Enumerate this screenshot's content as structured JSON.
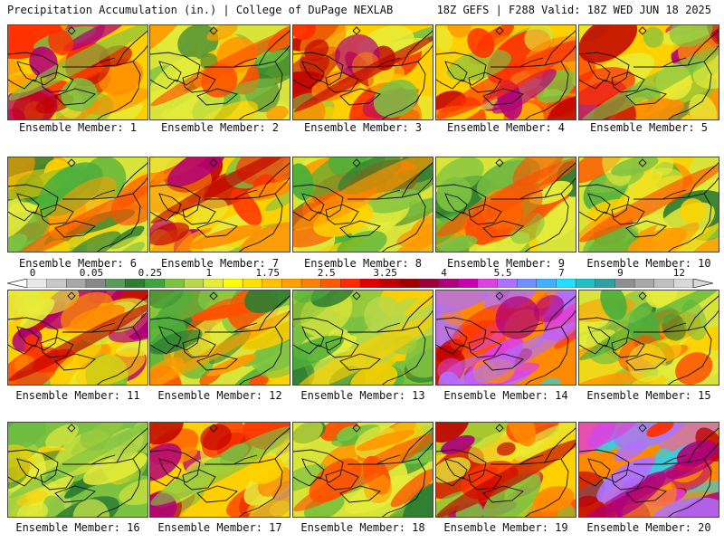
{
  "header": {
    "left": "Precipitation Accumulation (in.) | College of DuPage NEXLAB",
    "right": "18Z GEFS | F288 Valid: 18Z WED JUN 18 2025"
  },
  "members": [
    {
      "label": "Ensemble Member: 1",
      "tone": "wet"
    },
    {
      "label": "Ensemble Member: 2",
      "tone": "moderate"
    },
    {
      "label": "Ensemble Member: 3",
      "tone": "wet"
    },
    {
      "label": "Ensemble Member: 4",
      "tone": "wet"
    },
    {
      "label": "Ensemble Member: 5",
      "tone": "wet"
    },
    {
      "label": "Ensemble Member: 6",
      "tone": "moderate"
    },
    {
      "label": "Ensemble Member: 7",
      "tone": "wet"
    },
    {
      "label": "Ensemble Member: 8",
      "tone": "moderate"
    },
    {
      "label": "Ensemble Member: 9",
      "tone": "moderate"
    },
    {
      "label": "Ensemble Member: 10",
      "tone": "moderate"
    },
    {
      "label": "Ensemble Member: 11",
      "tone": "wet"
    },
    {
      "label": "Ensemble Member: 12",
      "tone": "moderate"
    },
    {
      "label": "Ensemble Member: 13",
      "tone": "dry"
    },
    {
      "label": "Ensemble Member: 14",
      "tone": "extreme"
    },
    {
      "label": "Ensemble Member: 15",
      "tone": "moderate"
    },
    {
      "label": "Ensemble Member: 16",
      "tone": "dry"
    },
    {
      "label": "Ensemble Member: 17",
      "tone": "wet"
    },
    {
      "label": "Ensemble Member: 18",
      "tone": "moderate"
    },
    {
      "label": "Ensemble Member: 19",
      "tone": "wet"
    },
    {
      "label": "Ensemble Member: 20",
      "tone": "extreme"
    }
  ],
  "legend": {
    "ticks": [
      {
        "label": "0",
        "index": 0
      },
      {
        "label": "0.05",
        "index": 3
      },
      {
        "label": "0.25",
        "index": 6
      },
      {
        "label": "1",
        "index": 9
      },
      {
        "label": "1.75",
        "index": 12
      },
      {
        "label": "2.5",
        "index": 15
      },
      {
        "label": "3.25",
        "index": 18
      },
      {
        "label": "4",
        "index": 21
      },
      {
        "label": "5.5",
        "index": 24
      },
      {
        "label": "7",
        "index": 27
      },
      {
        "label": "9",
        "index": 30
      },
      {
        "label": "12",
        "index": 33
      }
    ],
    "colors": [
      "#e8e8e8",
      "#c8c8c8",
      "#a8a8a8",
      "#888888",
      "#5a9a5a",
      "#2e7d32",
      "#3fa33f",
      "#7cc242",
      "#b8d84a",
      "#e6ec3a",
      "#ffff00",
      "#ffe000",
      "#ffc000",
      "#ffa000",
      "#ff8000",
      "#ff5a00",
      "#ff2a00",
      "#e00000",
      "#c00000",
      "#a00000",
      "#a0003a",
      "#b0007a",
      "#c800b0",
      "#e040e0",
      "#b070ff",
      "#7090ff",
      "#40b0ff",
      "#20e0ff",
      "#20c0c0",
      "#30a0a0",
      "#909090",
      "#a8a8a8",
      "#c0c0c0",
      "#d8d8d8"
    ]
  }
}
